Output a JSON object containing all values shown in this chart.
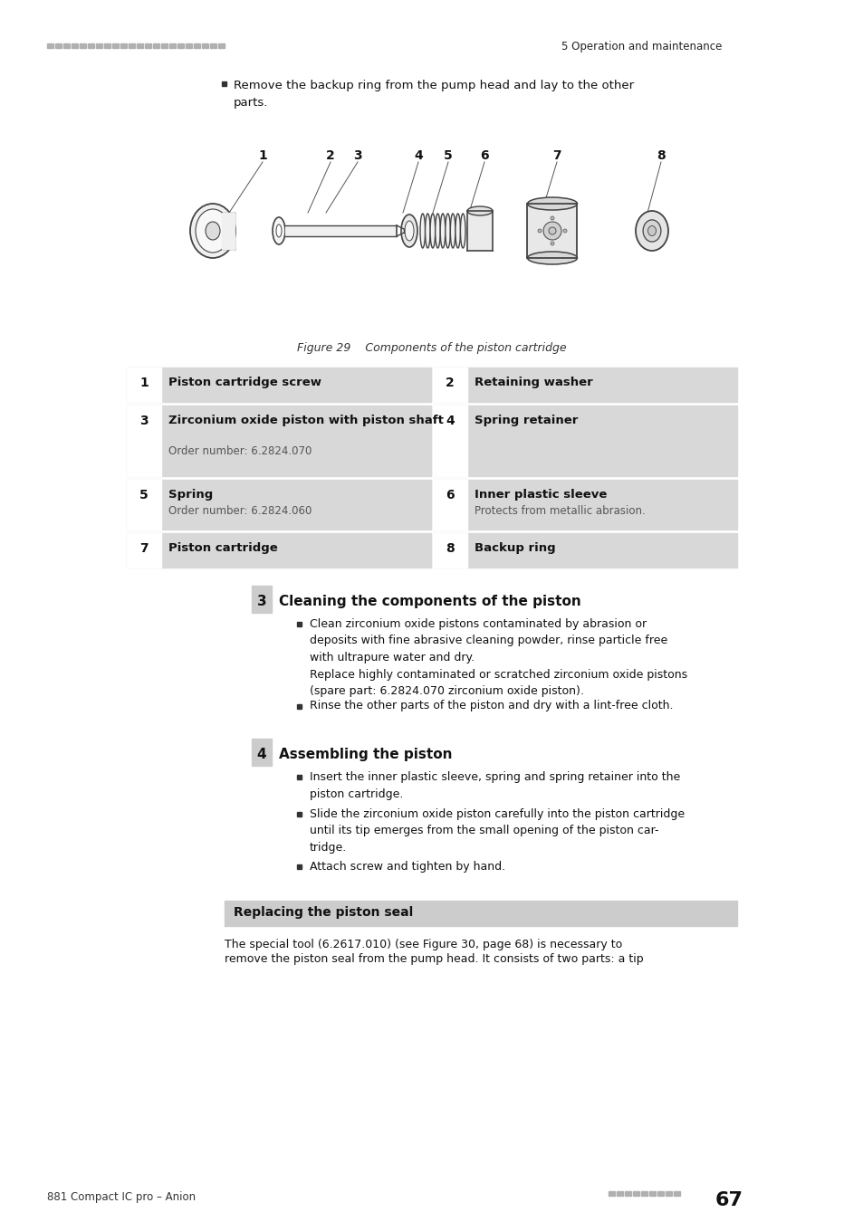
{
  "bg_color": "#ffffff",
  "header_text": "5 Operation and maintenance",
  "page_number": "67",
  "footer_left": "881 Compact IC pro – Anion",
  "figure_caption": "Figure 29    Components of the piston cartridge",
  "bullet_intro_line1": "Remove the backup ring from the pump head and lay to the other",
  "bullet_intro_line2": "parts.",
  "table_rows": [
    {
      "num": "1",
      "title": "Piston cartridge screw",
      "sub": ""
    },
    {
      "num": "2",
      "title": "Retaining washer",
      "sub": ""
    },
    {
      "num": "3",
      "title": "Zirconium oxide piston with piston shaft",
      "sub": "Order number: 6.2824.070"
    },
    {
      "num": "4",
      "title": "Spring retainer",
      "sub": ""
    },
    {
      "num": "5",
      "title": "Spring",
      "sub": "Order number: 6.2824.060"
    },
    {
      "num": "6",
      "title": "Inner plastic sleeve",
      "sub": "Protects from metallic abrasion."
    },
    {
      "num": "7",
      "title": "Piston cartridge",
      "sub": ""
    },
    {
      "num": "8",
      "title": "Backup ring",
      "sub": ""
    }
  ],
  "step3_title": "Cleaning the components of the piston",
  "step3_bullets": [
    "Clean zirconium oxide pistons contaminated by abrasion or\ndeposits with fine abrasive cleaning powder, rinse particle free\nwith ultrapure water and dry.\nReplace highly contaminated or scratched zirconium oxide pistons\n(spare part: 6.2824.070 zirconium oxide piston).",
    "Rinse the other parts of the piston and dry with a lint-free cloth."
  ],
  "step4_title": "Assembling the piston",
  "step4_bullets": [
    "Insert the inner plastic sleeve, spring and spring retainer into the\npiston cartridge.",
    "Slide the zirconium oxide piston carefully into the piston cartridge\nuntil its tip emerges from the small opening of the piston car-\ntridge.",
    "Attach screw and tighten by hand."
  ],
  "replacing_title": "Replacing the piston seal",
  "replacing_text_line1": "The special tool (6.2617.010) (see Figure 30, page 68) is necessary to",
  "replacing_text_line2": "remove the piston seal from the pump head. It consists of two parts: a tip"
}
